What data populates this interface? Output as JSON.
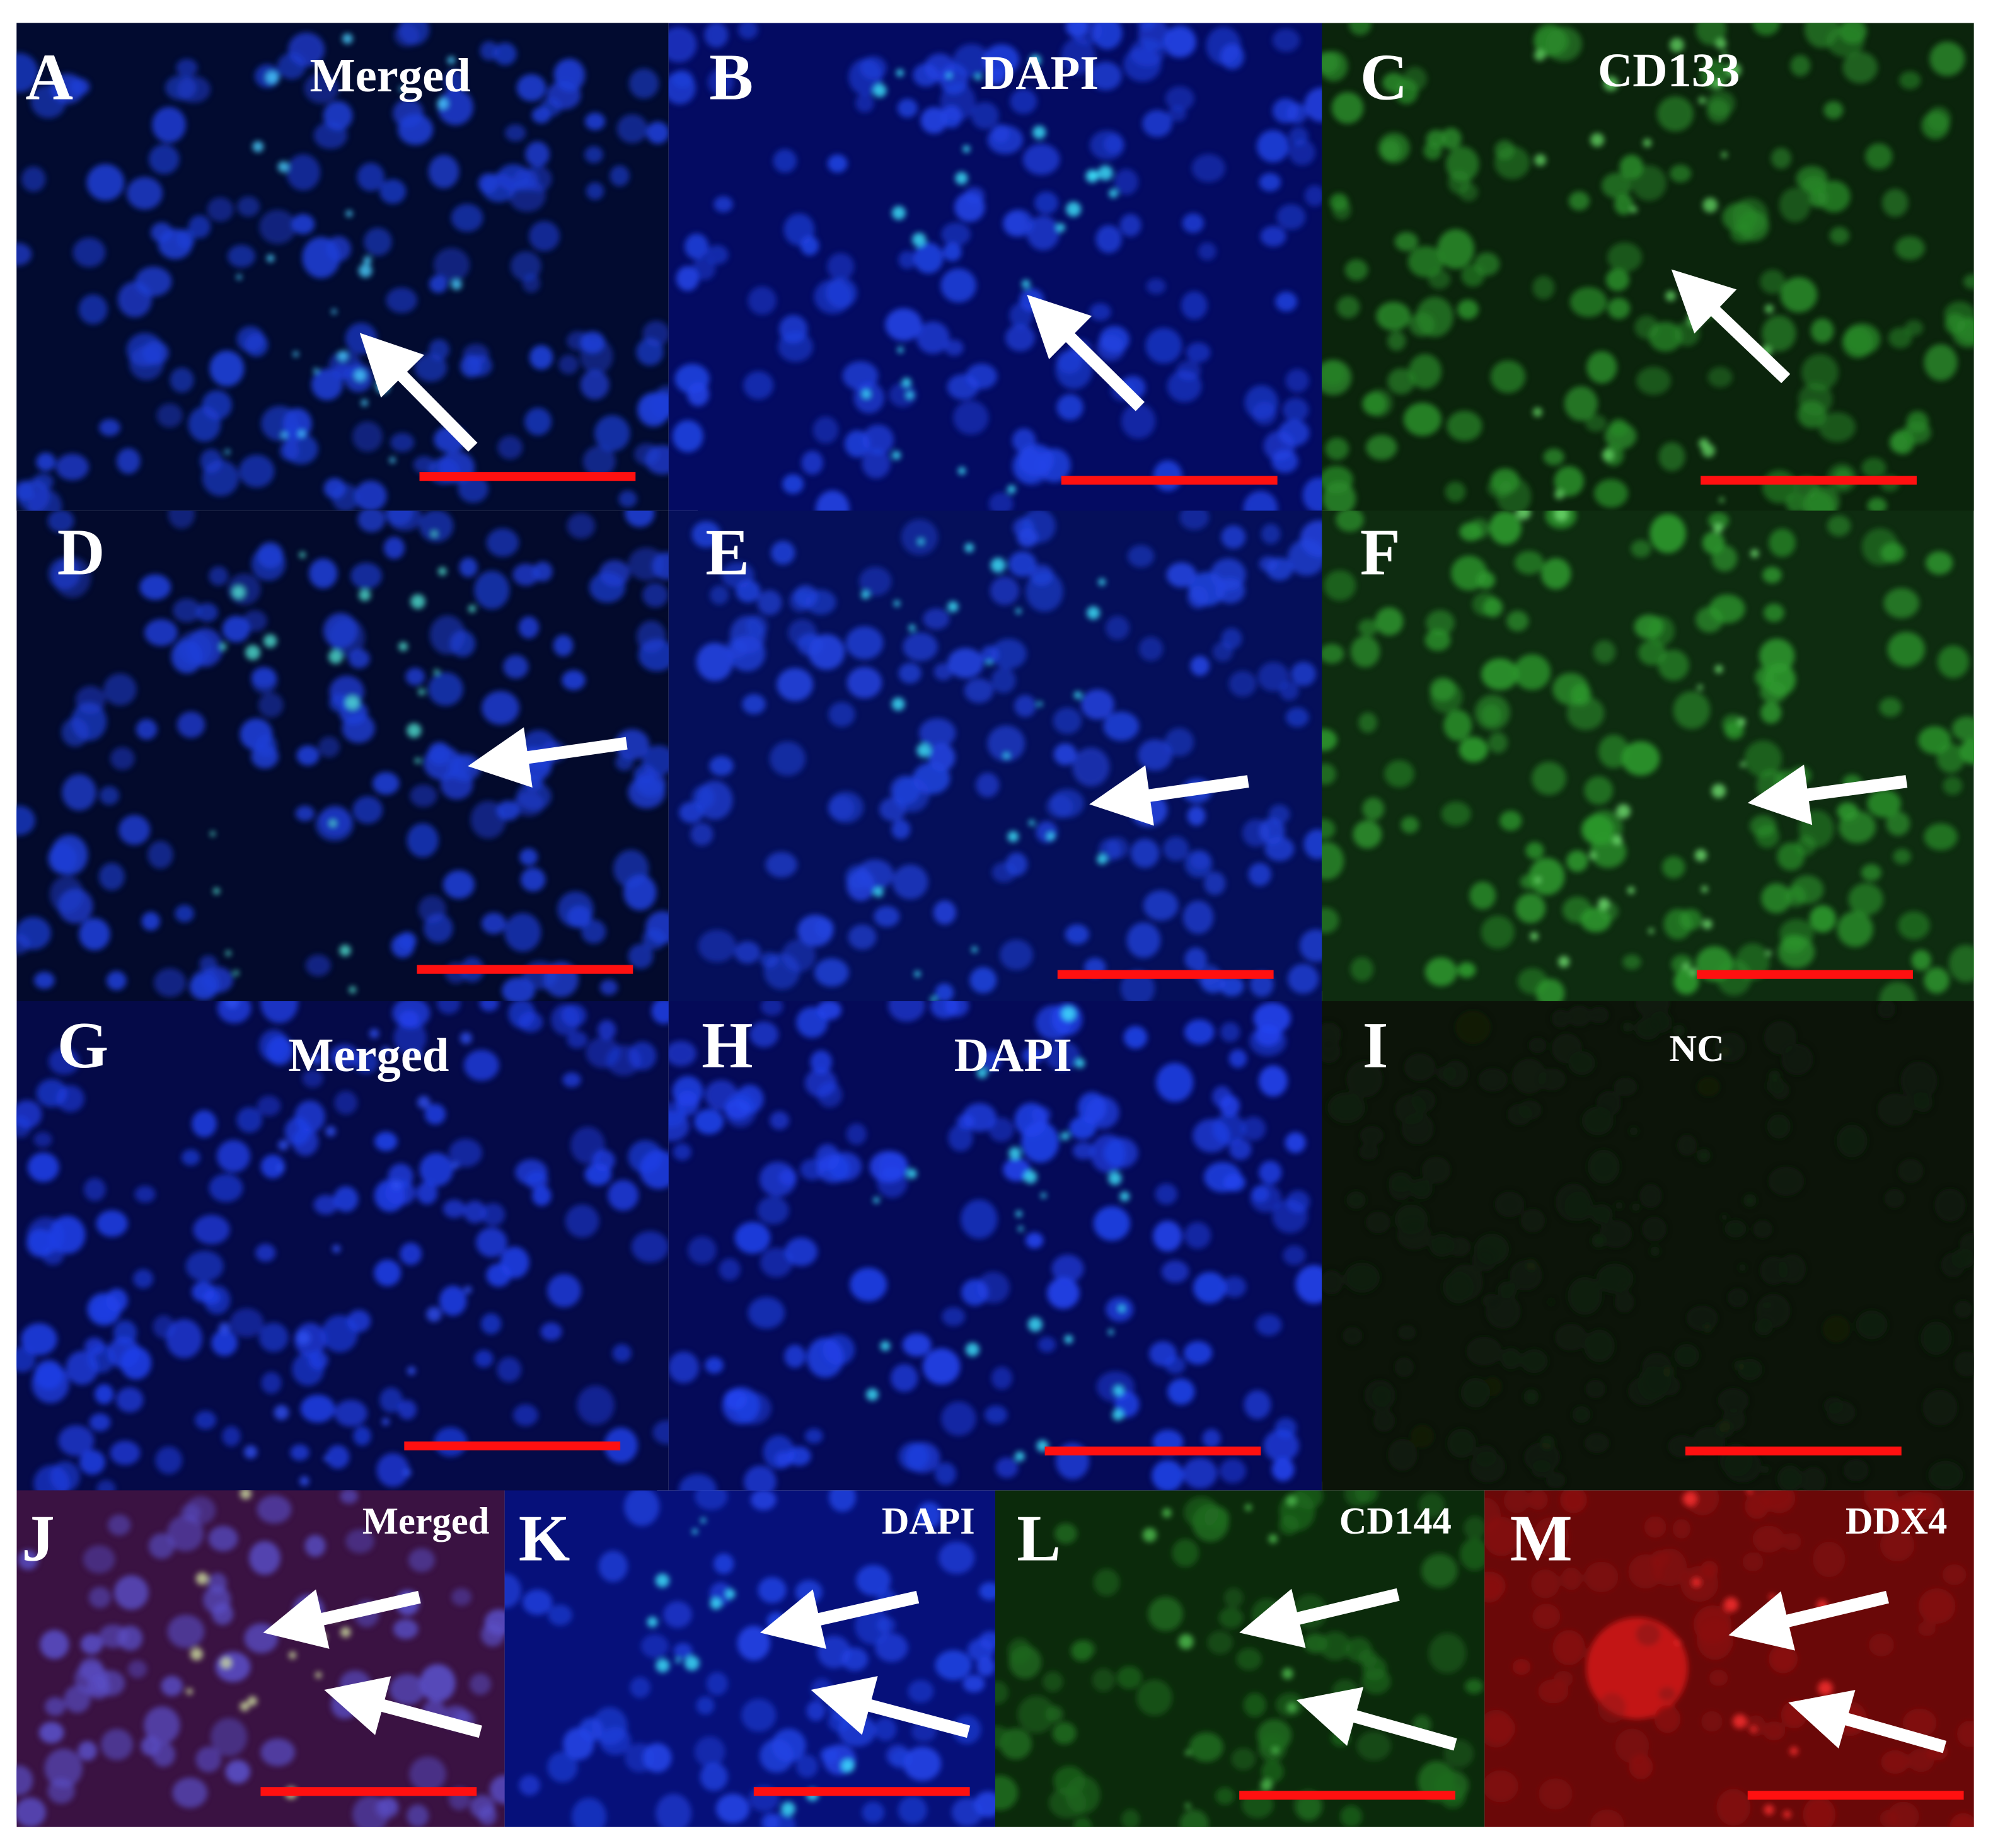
{
  "panels": [
    {
      "letter": "A",
      "label": "Merged"
    },
    {
      "letter": "B",
      "label": "DAPI"
    },
    {
      "letter": "C",
      "label": "CD133"
    },
    {
      "letter": "D"
    },
    {
      "letter": "E"
    },
    {
      "letter": "F"
    },
    {
      "letter": "G",
      "label": "Merged"
    },
    {
      "letter": "H",
      "label": "DAPI"
    },
    {
      "letter": "I",
      "label": "NC"
    },
    {
      "letter": "J",
      "label": "Merged"
    },
    {
      "letter": "K",
      "label": "DAPI"
    },
    {
      "letter": "L",
      "label": "CD144"
    },
    {
      "letter": "M",
      "label": "DDX4"
    }
  ]
}
